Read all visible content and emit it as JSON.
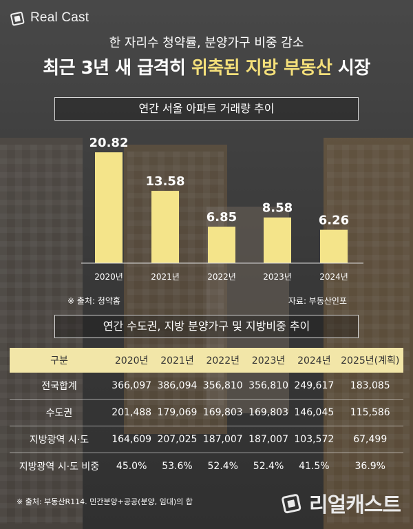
{
  "brand": {
    "logo_text": "Real Cast",
    "bottom_text": "리얼캐스트"
  },
  "header": {
    "subtitle": "한 자리수 청약률, 분양가구 비중 감소",
    "title_prefix": "최근 3년 새 급격히 ",
    "title_highlight": "위축된 지방 부동산",
    "title_suffix": " 시장"
  },
  "chart_section": {
    "title": "연간 서울 아파트 거래량 추이",
    "note_left": "※ 출처: 청약홈",
    "note_right": "자료: 부동산인포"
  },
  "chart_data": {
    "type": "bar",
    "title": "연간 서울 아파트 거래량 추이",
    "categories": [
      "2020년",
      "2021년",
      "2022년",
      "2023년",
      "2024년"
    ],
    "values": [
      20.82,
      13.58,
      6.85,
      8.58,
      6.26
    ],
    "data_labels": [
      "20.82",
      "13.58",
      "6.85",
      "8.58",
      "6.26"
    ],
    "ylim": [
      0,
      22
    ],
    "grid": false,
    "bar_color": "#f4e48a"
  },
  "table_section": {
    "title": "연간 수도권, 지방 분양가구 및 지방비중 추이",
    "columns": [
      "구분",
      "2020년",
      "2021년",
      "2022년",
      "2023년",
      "2024년",
      "2025년(계획)"
    ],
    "rows": [
      [
        "전국합계",
        "366,097",
        "386,094",
        "356,810",
        "356,810",
        "249,617",
        "183,085"
      ],
      [
        "수도권",
        "201,488",
        "179,069",
        "169,803",
        "169,803",
        "146,045",
        "115,586"
      ],
      [
        "지방광역 시·도",
        "164,609",
        "207,025",
        "187,007",
        "187,007",
        "103,572",
        "67,499"
      ],
      [
        "지방광역 시·도 비중",
        "45.0%",
        "53.6%",
        "52.4%",
        "52.4%",
        "41.5%",
        "36.9%"
      ]
    ],
    "source": "※ 출처: 부동산R114. 민간분양+공공(분양, 임대)의 합"
  },
  "colors": {
    "highlight": "#f4df7a",
    "header_fill": "#f2e6a8",
    "bar": "#f4e48a"
  }
}
